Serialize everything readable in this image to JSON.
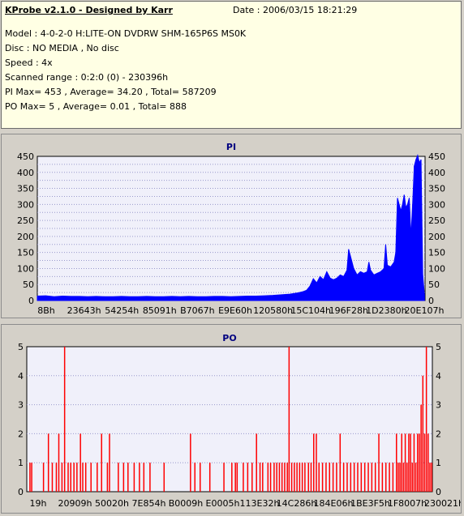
{
  "header": {
    "title": "KProbe v2.1.0 - Designed by Karr",
    "date": "Date : 2006/03/15 18:21:29",
    "model": "Model : 4-0-2-0 H:LITE-ON DVDRW SHM-165P6S MS0K",
    "disc": "Disc : NO MEDIA , No disc",
    "speed": "Speed : 4x",
    "scanned_range": "Scanned range : 0:2:0 (0) - 230396h",
    "pi_summary": "PI Max= 453 , Average= 34.20 , Total= 587209",
    "po_summary": "PO Max= 5 , Average= 0.01 , Total= 888"
  },
  "colors": {
    "pi_series": "#0000ff",
    "po_series": "#ff0000",
    "plot_bg": "#f0f0fa",
    "grid": "#9999cc",
    "title_color": "#000080",
    "info_bg": "#ffffe4"
  },
  "chart_data": [
    {
      "type": "bar",
      "title": "PI",
      "ylim": [
        0,
        450
      ],
      "yticks": [
        0,
        25,
        50,
        75,
        100,
        125,
        150,
        175,
        200,
        225,
        250,
        275,
        300,
        325,
        350,
        375,
        400,
        425,
        450
      ],
      "ytick_labels": [
        "0",
        "25",
        "50",
        "75",
        "100",
        "125",
        "150",
        "175",
        "200",
        "225",
        "250",
        "275",
        "300",
        "325",
        "350",
        "375",
        "400",
        "425",
        "450"
      ],
      "xlim": [
        0,
        230396
      ],
      "xtick_labels": [
        "8Bh",
        "23643h",
        "54254h",
        "85091h",
        "B7067h",
        "E9E60h",
        "120580h",
        "15C104h",
        "196F28h",
        "1D2380h",
        "20E107h"
      ],
      "grid": true,
      "series": [
        {
          "points": [
            [
              0,
              14
            ],
            [
              5000,
              15
            ],
            [
              10000,
              12
            ],
            [
              15000,
              14
            ],
            [
              20000,
              13
            ],
            [
              25000,
              13
            ],
            [
              30000,
              12
            ],
            [
              35000,
              13
            ],
            [
              40000,
              12
            ],
            [
              45000,
              12
            ],
            [
              50000,
              13
            ],
            [
              55000,
              12
            ],
            [
              60000,
              12
            ],
            [
              65000,
              13
            ],
            [
              70000,
              12
            ],
            [
              75000,
              12
            ],
            [
              80000,
              13
            ],
            [
              85000,
              12
            ],
            [
              90000,
              13
            ],
            [
              95000,
              12
            ],
            [
              100000,
              12
            ],
            [
              105000,
              13
            ],
            [
              110000,
              13
            ],
            [
              115000,
              12
            ],
            [
              120000,
              13
            ],
            [
              125000,
              14
            ],
            [
              130000,
              14
            ],
            [
              135000,
              15
            ],
            [
              140000,
              16
            ],
            [
              145000,
              18
            ],
            [
              150000,
              20
            ],
            [
              155000,
              24
            ],
            [
              158000,
              28
            ],
            [
              160000,
              32
            ],
            [
              162000,
              45
            ],
            [
              164000,
              68
            ],
            [
              166000,
              55
            ],
            [
              168000,
              75
            ],
            [
              170000,
              65
            ],
            [
              172000,
              90
            ],
            [
              174000,
              70
            ],
            [
              176000,
              65
            ],
            [
              178000,
              70
            ],
            [
              180000,
              80
            ],
            [
              182000,
              75
            ],
            [
              184000,
              95
            ],
            [
              185000,
              160
            ],
            [
              186000,
              140
            ],
            [
              188000,
              100
            ],
            [
              190000,
              80
            ],
            [
              192000,
              90
            ],
            [
              194000,
              85
            ],
            [
              196000,
              90
            ],
            [
              197000,
              120
            ],
            [
              198000,
              95
            ],
            [
              200000,
              80
            ],
            [
              202000,
              85
            ],
            [
              204000,
              90
            ],
            [
              206000,
              100
            ],
            [
              207000,
              175
            ],
            [
              208000,
              110
            ],
            [
              210000,
              105
            ],
            [
              212000,
              120
            ],
            [
              213000,
              150
            ],
            [
              214000,
              320
            ],
            [
              215000,
              300
            ],
            [
              216000,
              280
            ],
            [
              217000,
              300
            ],
            [
              218000,
              330
            ],
            [
              219000,
              290
            ],
            [
              220000,
              300
            ],
            [
              221000,
              320
            ],
            [
              222000,
              200
            ],
            [
              223000,
              300
            ],
            [
              224000,
              420
            ],
            [
              225000,
              440
            ],
            [
              226000,
              453
            ],
            [
              227000,
              430
            ],
            [
              228000,
              440
            ],
            [
              229000,
              80
            ],
            [
              230000,
              20
            ]
          ]
        }
      ]
    },
    {
      "type": "bar",
      "title": "PO",
      "ylim": [
        0,
        5
      ],
      "yticks": [
        0,
        1,
        2,
        3,
        4,
        5
      ],
      "ytick_labels": [
        "0",
        "1",
        "2",
        "3",
        "4",
        "5"
      ],
      "xlim": [
        0,
        230396
      ],
      "xtick_labels": [
        "19h",
        "20909h",
        "50020h",
        "7E854h",
        "B0009h",
        "E0005h",
        "113E32h",
        "14C286h",
        "184E06h",
        "1BE3F5h",
        "1F8007h",
        "230021h"
      ],
      "grid": true,
      "series": [
        {
          "points": [
            [
              1800,
              1
            ],
            [
              2800,
              1
            ],
            [
              9500,
              1
            ],
            [
              12300,
              2
            ],
            [
              14500,
              1
            ],
            [
              16800,
              1
            ],
            [
              18200,
              2
            ],
            [
              20000,
              1
            ],
            [
              21500,
              5
            ],
            [
              23500,
              1
            ],
            [
              25000,
              1
            ],
            [
              26800,
              1
            ],
            [
              28500,
              1
            ],
            [
              30500,
              2
            ],
            [
              31800,
              1
            ],
            [
              33500,
              1
            ],
            [
              36500,
              1
            ],
            [
              40000,
              1
            ],
            [
              42500,
              2
            ],
            [
              45800,
              1
            ],
            [
              47000,
              2
            ],
            [
              52000,
              1
            ],
            [
              55000,
              1
            ],
            [
              57500,
              1
            ],
            [
              61000,
              1
            ],
            [
              64000,
              1
            ],
            [
              66500,
              1
            ],
            [
              70000,
              1
            ],
            [
              78000,
              1
            ],
            [
              93000,
              2
            ],
            [
              95500,
              1
            ],
            [
              98500,
              1
            ],
            [
              104000,
              1
            ],
            [
              112000,
              1
            ],
            [
              116500,
              1
            ],
            [
              118500,
              1
            ],
            [
              119500,
              1
            ],
            [
              123000,
              1
            ],
            [
              125500,
              1
            ],
            [
              128000,
              1
            ],
            [
              130500,
              2
            ],
            [
              132500,
              1
            ],
            [
              134000,
              1
            ],
            [
              137000,
              1
            ],
            [
              138500,
              1
            ],
            [
              140500,
              1
            ],
            [
              142000,
              1
            ],
            [
              143500,
              1
            ],
            [
              145000,
              1
            ],
            [
              146500,
              1
            ],
            [
              148000,
              1
            ],
            [
              149000,
              5
            ],
            [
              150500,
              1
            ],
            [
              152000,
              1
            ],
            [
              153500,
              1
            ],
            [
              155000,
              1
            ],
            [
              156500,
              1
            ],
            [
              158000,
              1
            ],
            [
              160000,
              1
            ],
            [
              161500,
              1
            ],
            [
              163000,
              2
            ],
            [
              164500,
              2
            ],
            [
              166000,
              1
            ],
            [
              168000,
              1
            ],
            [
              170000,
              1
            ],
            [
              172000,
              1
            ],
            [
              174000,
              1
            ],
            [
              176000,
              1
            ],
            [
              178000,
              2
            ],
            [
              180000,
              1
            ],
            [
              182000,
              1
            ],
            [
              184000,
              1
            ],
            [
              186000,
              1
            ],
            [
              188000,
              1
            ],
            [
              190000,
              1
            ],
            [
              192000,
              1
            ],
            [
              194000,
              1
            ],
            [
              196000,
              1
            ],
            [
              198000,
              1
            ],
            [
              200000,
              2
            ],
            [
              202000,
              1
            ],
            [
              204000,
              1
            ],
            [
              206000,
              1
            ],
            [
              208000,
              1
            ],
            [
              210000,
              2
            ],
            [
              211000,
              1
            ],
            [
              212000,
              1
            ],
            [
              213000,
              2
            ],
            [
              214000,
              1
            ],
            [
              215000,
              2
            ],
            [
              216000,
              1
            ],
            [
              217000,
              2
            ],
            [
              218000,
              2
            ],
            [
              219000,
              1
            ],
            [
              220000,
              2
            ],
            [
              221000,
              1
            ],
            [
              222000,
              2
            ],
            [
              223000,
              2
            ],
            [
              224000,
              3
            ],
            [
              225000,
              4
            ],
            [
              226000,
              2
            ],
            [
              227000,
              5
            ],
            [
              228000,
              2
            ],
            [
              229000,
              1
            ],
            [
              230000,
              1
            ]
          ]
        }
      ]
    }
  ]
}
